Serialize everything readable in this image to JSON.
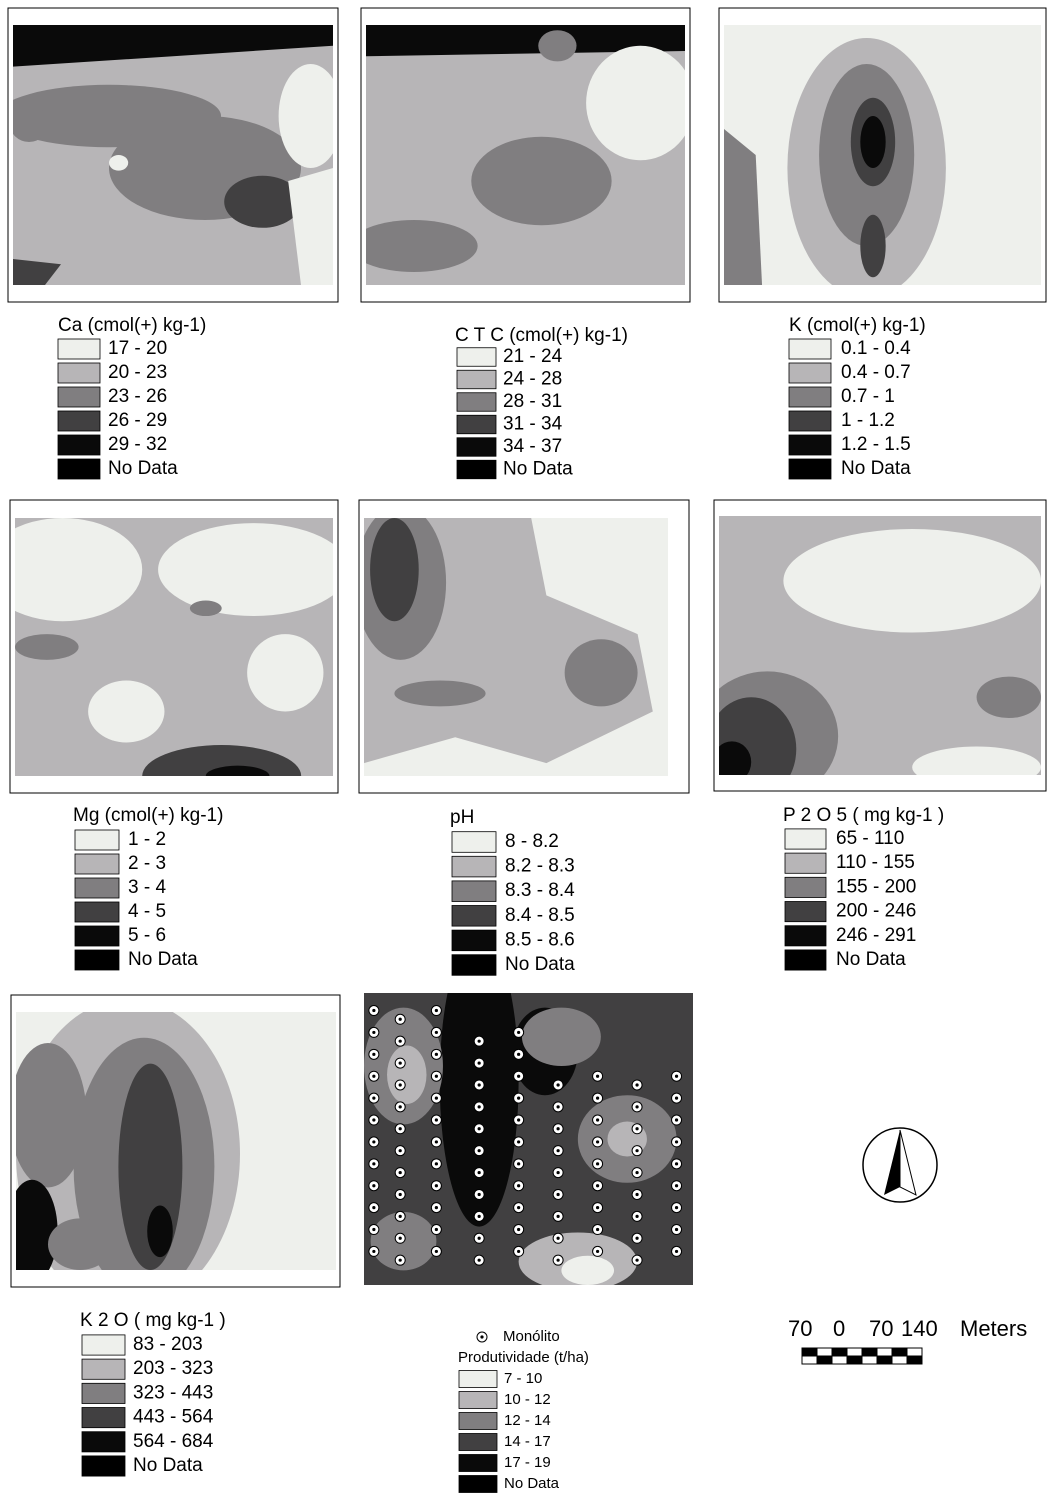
{
  "panels": [
    {
      "title": "Ca (cmol(+) kg-1)",
      "legend": [
        "17 - 20",
        "20 - 23",
        "23 - 26",
        "26 - 29",
        "29 - 32",
        "No Data"
      ]
    },
    {
      "title": "C T C (cmol(+) kg-1)",
      "legend": [
        "21 - 24",
        "24 - 28",
        "28 - 31",
        "31 - 34",
        "34 - 37",
        "No Data"
      ]
    },
    {
      "title": "K (cmol(+) kg-1)",
      "legend": [
        "0.1 - 0.4",
        "0.4 - 0.7",
        "0.7 - 1",
        "1 - 1.2",
        "1.2 - 1.5",
        "No Data"
      ]
    },
    {
      "title": "Mg (cmol(+) kg-1)",
      "legend": [
        "1 - 2",
        "2 - 3",
        "3 - 4",
        "4 - 5",
        "5 - 6",
        "No Data"
      ]
    },
    {
      "title": "pH",
      "legend": [
        "8 - 8.2",
        "8.2 - 8.3",
        "8.3 - 8.4",
        "8.4 - 8.5",
        "8.5 - 8.6",
        "No Data"
      ]
    },
    {
      "title": "P 2 O 5 ( mg kg-1 )",
      "legend": [
        "65 - 110",
        "110 - 155",
        "155 - 200",
        "200 - 246",
        "246 - 291",
        "No Data"
      ]
    },
    {
      "title": "K 2 O ( mg kg-1 )",
      "legend": [
        "83 - 203",
        "203 - 323",
        "323 - 443",
        "443 - 564",
        "564 - 684",
        "No Data"
      ]
    },
    {
      "title": "Produtividade (t/ha)",
      "point_label": "Monólito",
      "legend": [
        "7 - 10",
        "10 - 12",
        "12 - 14",
        "14 - 17",
        "17 - 19",
        "No Data"
      ]
    }
  ],
  "scale": {
    "labels": [
      "70",
      "0",
      "70",
      "140"
    ],
    "unit": "Meters"
  }
}
